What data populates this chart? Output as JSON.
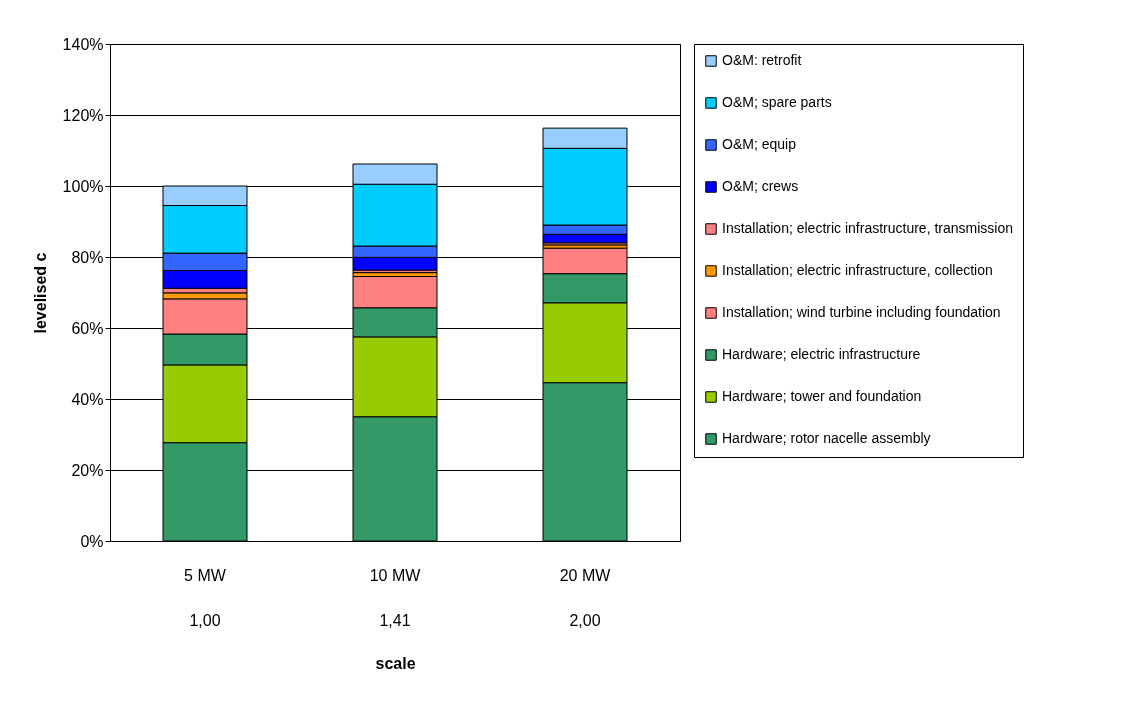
{
  "chart_data": {
    "type": "bar",
    "stacked": true,
    "xlabel": "scale",
    "ylabel": "levelised c",
    "categories": [
      "5 MW",
      "10 MW",
      "20 MW"
    ],
    "annotations": [
      "1,00",
      "1,41",
      "2,00"
    ],
    "ylim": [
      0,
      140
    ],
    "yticks": [
      {
        "value": 0,
        "label": "0%"
      },
      {
        "value": 20,
        "label": "20%"
      },
      {
        "value": 40,
        "label": "40%"
      },
      {
        "value": 60,
        "label": "60%"
      },
      {
        "value": 80,
        "label": "80%"
      },
      {
        "value": 100,
        "label": "100%"
      },
      {
        "value": 120,
        "label": "120%"
      },
      {
        "value": 140,
        "label": "140%"
      }
    ],
    "grid": "y",
    "legend": "right",
    "series": [
      {
        "name": "Hardware; rotor nacelle assembly",
        "color": "#339966",
        "values": [
          27.7,
          35.0,
          44.6
        ]
      },
      {
        "name": "Hardware; tower and foundation",
        "color": "#99cc00",
        "values": [
          21.9,
          22.5,
          22.5
        ]
      },
      {
        "name": "Hardware; electric infrastructure",
        "color": "#339966",
        "values": [
          8.7,
          8.2,
          8.2
        ]
      },
      {
        "name": "Installation; wind turbine including foundation",
        "color": "#ff8080",
        "values": [
          9.9,
          8.8,
          7.2
        ]
      },
      {
        "name": "Installation; electric infrastructure, collection",
        "color": "#ff9900",
        "values": [
          1.7,
          1.1,
          0.9
        ]
      },
      {
        "name": "Installation; electric infrastructure, transmission",
        "color": "#ff8080",
        "values": [
          1.3,
          0.7,
          0.6
        ]
      },
      {
        "name": "O&M; crews",
        "color": "#0000ff",
        "values": [
          5.0,
          3.6,
          2.4
        ]
      },
      {
        "name": "O&M; equip",
        "color": "#3366ff",
        "values": [
          4.9,
          3.2,
          2.6
        ]
      },
      {
        "name": "O&M; spare parts",
        "color": "#00ccff",
        "values": [
          13.4,
          17.4,
          21.6
        ]
      },
      {
        "name": "O&M: retrofit",
        "color": "#99ccff",
        "values": [
          5.5,
          5.7,
          5.7
        ]
      }
    ]
  }
}
